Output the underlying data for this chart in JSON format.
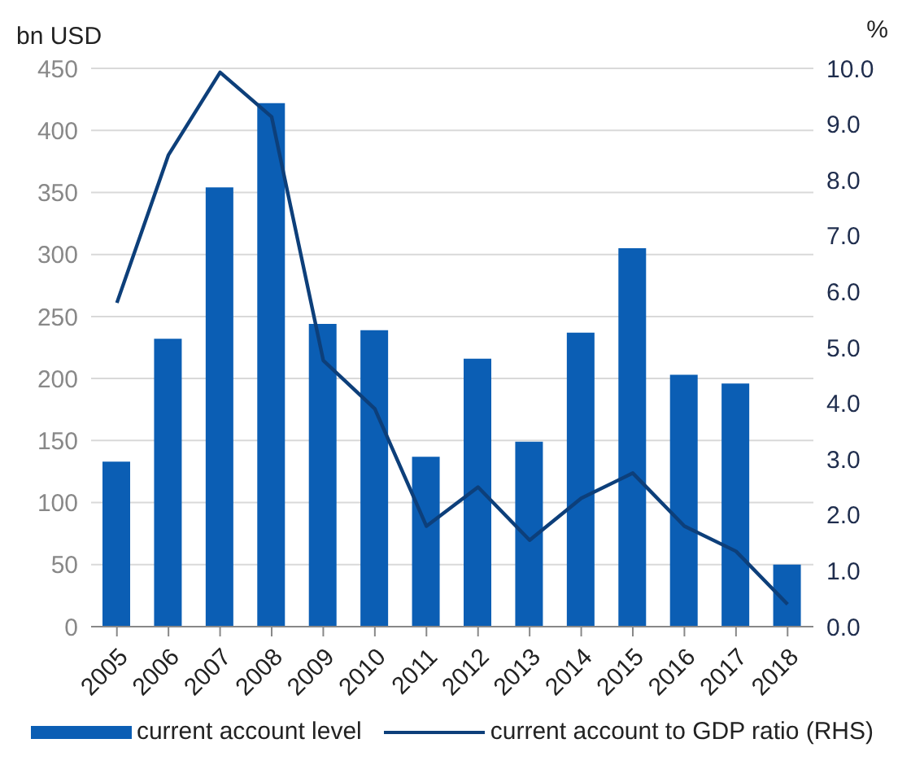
{
  "chart_data": {
    "type": "bar",
    "ylabel": "bn USD",
    "y2label": "%",
    "categories": [
      "2005",
      "2006",
      "2007",
      "2008",
      "2009",
      "2010",
      "2011",
      "2012",
      "2013",
      "2014",
      "2015",
      "2016",
      "2017",
      "2018"
    ],
    "series": [
      {
        "name": "current account level",
        "color": "#0b5eb4",
        "values": [
          133,
          232,
          354,
          422,
          244,
          239,
          137,
          216,
          149,
          237,
          305,
          203,
          196,
          50
        ]
      },
      {
        "name": "current account to GDP ratio (RHS)",
        "type": "line",
        "axis": "y2",
        "color": "#0d3f7a",
        "values": [
          5.8,
          8.45,
          9.93,
          9.13,
          4.77,
          3.9,
          1.8,
          2.5,
          1.55,
          2.3,
          2.75,
          1.8,
          1.35,
          0.4
        ]
      }
    ],
    "ylim": [
      0,
      450
    ],
    "yticks": [
      0,
      50,
      100,
      150,
      200,
      250,
      300,
      350,
      400,
      450
    ],
    "y2lim": [
      0,
      10
    ],
    "y2ticks": [
      {
        "value": 0,
        "label": "0.0"
      },
      {
        "value": 1,
        "label": "1.0"
      },
      {
        "value": 2,
        "label": "2.0"
      },
      {
        "value": 3,
        "label": "3.0"
      },
      {
        "value": 4,
        "label": "4.0"
      },
      {
        "value": 5,
        "label": "5.0"
      },
      {
        "value": 6,
        "label": "6.0"
      },
      {
        "value": 7,
        "label": "7.0"
      },
      {
        "value": 8,
        "label": "8.0"
      },
      {
        "value": 9,
        "label": "9.0"
      },
      {
        "value": 10,
        "label": "10.0"
      }
    ],
    "grid": "y",
    "legend": "bottom",
    "marker": "none"
  }
}
